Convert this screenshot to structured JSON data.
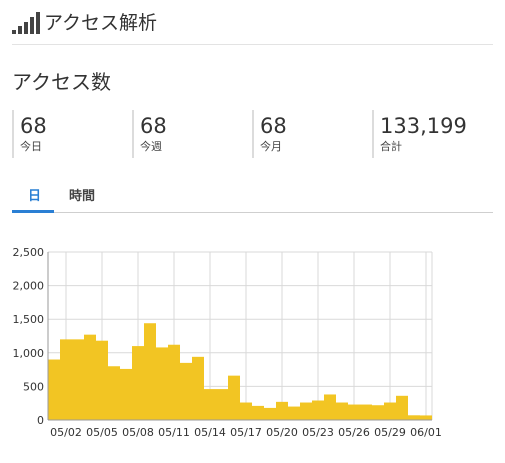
{
  "header": {
    "title": "アクセス解析",
    "icon": "signal-bars-icon"
  },
  "section": {
    "title": "アクセス数"
  },
  "stats": [
    {
      "value": "68",
      "label": "今日"
    },
    {
      "value": "68",
      "label": "今週"
    },
    {
      "value": "68",
      "label": "今月"
    },
    {
      "value": "133,199",
      "label": "合計"
    }
  ],
  "tabs": [
    {
      "label": "日",
      "active": true
    },
    {
      "label": "時間",
      "active": false
    }
  ],
  "colors": {
    "accent": "#2a7fd4",
    "bar": "#f2c523",
    "grid": "#d9d9d9"
  },
  "chart_data": {
    "type": "bar",
    "ylim": [
      0,
      2500
    ],
    "yticks": [
      "0",
      "500",
      "1,000",
      "1,500",
      "2,000",
      "2,500"
    ],
    "ytick_values": [
      0,
      500,
      1000,
      1500,
      2000,
      2500
    ],
    "xtick_labels": [
      "05/02",
      "05/05",
      "05/08",
      "05/11",
      "05/14",
      "05/17",
      "05/20",
      "05/23",
      "05/26",
      "05/29",
      "06/01"
    ],
    "categories": [
      "05/01",
      "05/02",
      "05/03",
      "05/04",
      "05/05",
      "05/06",
      "05/07",
      "05/08",
      "05/09",
      "05/10",
      "05/11",
      "05/12",
      "05/13",
      "05/14",
      "05/15",
      "05/16",
      "05/17",
      "05/18",
      "05/19",
      "05/20",
      "05/21",
      "05/22",
      "05/23",
      "05/24",
      "05/25",
      "05/26",
      "05/27",
      "05/28",
      "05/29",
      "05/30",
      "05/31",
      "06/01"
    ],
    "values": [
      900,
      1200,
      1200,
      1270,
      1180,
      800,
      760,
      1100,
      1440,
      1080,
      1120,
      850,
      940,
      460,
      460,
      660,
      260,
      210,
      180,
      270,
      200,
      260,
      290,
      380,
      260,
      230,
      230,
      220,
      260,
      360,
      70,
      68
    ]
  }
}
